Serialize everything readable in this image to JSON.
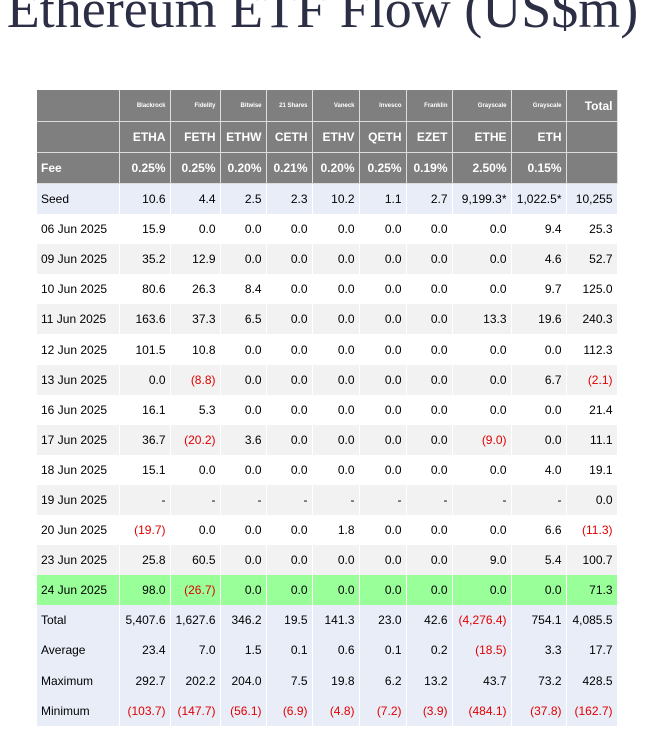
{
  "title": "Ethereum ETF Flow (US$m)",
  "table": {
    "issuers": [
      "Blackrock",
      "Fidelity",
      "Bitwise",
      "21 Shares",
      "Vaneck",
      "Invesco",
      "Franklin",
      "Grayscale",
      "Grayscale",
      "Total"
    ],
    "tickers": [
      "ETHA",
      "FETH",
      "ETHW",
      "CETH",
      "ETHV",
      "QETH",
      "EZET",
      "ETHE",
      "ETH"
    ],
    "fee_label": "Fee",
    "fees": [
      "0.25%",
      "0.25%",
      "0.20%",
      "0.21%",
      "0.20%",
      "0.25%",
      "0.19%",
      "2.50%",
      "0.15%"
    ],
    "rows": [
      {
        "label": "Seed",
        "values": [
          "10.6",
          "4.4",
          "2.5",
          "2.3",
          "10.2",
          "1.1",
          "2.7",
          "9,199.3*",
          "1,022.5*",
          "10,255"
        ],
        "background": "#e9edf8"
      },
      {
        "label": "06 Jun 2025",
        "values": [
          "15.9",
          "0.0",
          "0.0",
          "0.0",
          "0.0",
          "0.0",
          "0.0",
          "0.0",
          "9.4",
          "25.3"
        ],
        "background": "#ffffff"
      },
      {
        "label": "09 Jun 2025",
        "values": [
          "35.2",
          "12.9",
          "0.0",
          "0.0",
          "0.0",
          "0.0",
          "0.0",
          "0.0",
          "4.6",
          "52.7"
        ],
        "background": "#f2f2f2"
      },
      {
        "label": "10 Jun 2025",
        "values": [
          "80.6",
          "26.3",
          "8.4",
          "0.0",
          "0.0",
          "0.0",
          "0.0",
          "0.0",
          "9.7",
          "125.0"
        ],
        "background": "#ffffff"
      },
      {
        "label": "11 Jun 2025",
        "values": [
          "163.6",
          "37.3",
          "6.5",
          "0.0",
          "0.0",
          "0.0",
          "0.0",
          "13.3",
          "19.6",
          "240.3"
        ],
        "background": "#f2f2f2"
      },
      {
        "label": "12 Jun 2025",
        "values": [
          "101.5",
          "10.8",
          "0.0",
          "0.0",
          "0.0",
          "0.0",
          "0.0",
          "0.0",
          "0.0",
          "112.3"
        ],
        "background": "#ffffff"
      },
      {
        "label": "13 Jun 2025",
        "values": [
          "0.0",
          "(8.8)",
          "0.0",
          "0.0",
          "0.0",
          "0.0",
          "0.0",
          "0.0",
          "6.7",
          "(2.1)"
        ],
        "background": "#f2f2f2"
      },
      {
        "label": "16 Jun 2025",
        "values": [
          "16.1",
          "5.3",
          "0.0",
          "0.0",
          "0.0",
          "0.0",
          "0.0",
          "0.0",
          "0.0",
          "21.4"
        ],
        "background": "#ffffff"
      },
      {
        "label": "17 Jun 2025",
        "values": [
          "36.7",
          "(20.2)",
          "3.6",
          "0.0",
          "0.0",
          "0.0",
          "0.0",
          "(9.0)",
          "0.0",
          "11.1"
        ],
        "background": "#f2f2f2"
      },
      {
        "label": "18 Jun 2025",
        "values": [
          "15.1",
          "0.0",
          "0.0",
          "0.0",
          "0.0",
          "0.0",
          "0.0",
          "0.0",
          "4.0",
          "19.1"
        ],
        "background": "#ffffff"
      },
      {
        "label": "19 Jun 2025",
        "values": [
          "-",
          "-",
          "-",
          "-",
          "-",
          "-",
          "-",
          "-",
          "-",
          "0.0"
        ],
        "background": "#f2f2f2"
      },
      {
        "label": "20 Jun 2025",
        "values": [
          "(19.7)",
          "0.0",
          "0.0",
          "0.0",
          "1.8",
          "0.0",
          "0.0",
          "0.0",
          "6.6",
          "(11.3)"
        ],
        "background": "#ffffff"
      },
      {
        "label": "23 Jun 2025",
        "values": [
          "25.8",
          "60.5",
          "0.0",
          "0.0",
          "0.0",
          "0.0",
          "0.0",
          "9.0",
          "5.4",
          "100.7"
        ],
        "background": "#f2f2f2"
      },
      {
        "label": "24 Jun 2025",
        "values": [
          "98.0",
          "(26.7)",
          "0.0",
          "0.0",
          "0.0",
          "0.0",
          "0.0",
          "0.0",
          "0.0",
          "71.3"
        ],
        "background": "#99ff99"
      },
      {
        "label": "Total",
        "values": [
          "5,407.6",
          "1,627.6",
          "346.2",
          "19.5",
          "141.3",
          "23.0",
          "42.6",
          "(4,276.4)",
          "754.1",
          "4,085.5"
        ],
        "background": "#e9edf8"
      },
      {
        "label": "Average",
        "values": [
          "23.4",
          "7.0",
          "1.5",
          "0.1",
          "0.6",
          "0.1",
          "0.2",
          "(18.5)",
          "3.3",
          "17.7"
        ],
        "background": "#e9edf8"
      },
      {
        "label": "Maximum",
        "values": [
          "292.7",
          "202.2",
          "204.0",
          "7.5",
          "19.8",
          "6.2",
          "13.2",
          "43.7",
          "73.2",
          "428.5"
        ],
        "background": "#e9edf8"
      },
      {
        "label": "Minimum",
        "values": [
          "(103.7)",
          "(147.7)",
          "(56.1)",
          "(6.9)",
          "(4.8)",
          "(7.2)",
          "(3.9)",
          "(484.1)",
          "(37.8)",
          "(162.7)"
        ],
        "background": "#e9edf8"
      }
    ]
  }
}
